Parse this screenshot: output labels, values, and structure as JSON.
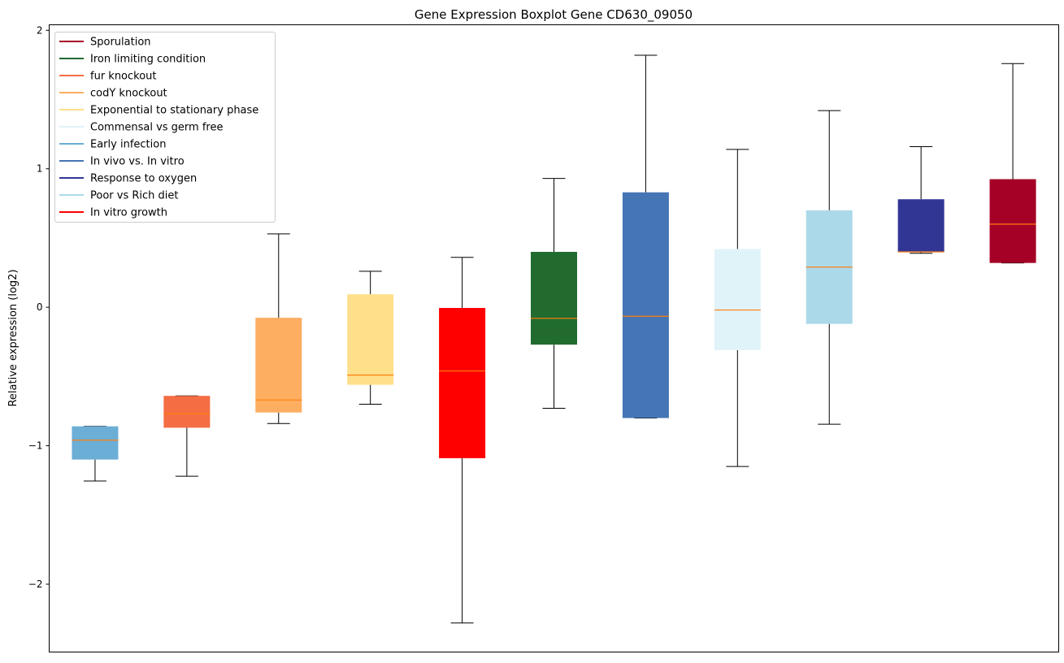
{
  "chart_data": {
    "type": "boxplot",
    "title": "Gene Expression Boxplot Gene CD630_09050",
    "xlabel": "",
    "ylabel": "Relative expression (log2)",
    "ylim": [
      -2.49,
      2.04
    ],
    "xlim": [
      0.5,
      11.5
    ],
    "yticks": [
      {
        "v": 2,
        "label": "2"
      },
      {
        "v": 1,
        "label": "1"
      },
      {
        "v": 0,
        "label": "0"
      },
      {
        "v": -1,
        "label": "−1"
      },
      {
        "v": -2,
        "label": "−2"
      }
    ],
    "median_color": "#ff7f0e",
    "boxes": [
      {
        "name": "Early infection",
        "color": "#6baed6",
        "whislo": -1.255,
        "q1": -1.1,
        "med": -0.96,
        "q3": -0.86,
        "whishi": -0.86
      },
      {
        "name": "fur knockout",
        "color": "#f46d43",
        "whislo": -1.22,
        "q1": -0.87,
        "med": -0.77,
        "q3": -0.64,
        "whishi": -0.64
      },
      {
        "name": "codY knockout",
        "color": "#fdae61",
        "whislo": -0.84,
        "q1": -0.76,
        "med": -0.67,
        "q3": -0.076,
        "whishi": 0.53
      },
      {
        "name": "Exponential to stationary phase",
        "color": "#fee08b",
        "whislo": -0.7,
        "q1": -0.56,
        "med": -0.49,
        "q3": 0.094,
        "whishi": 0.26
      },
      {
        "name": "In vitro growth",
        "color": "#ff0000",
        "whislo": -2.28,
        "q1": -1.09,
        "med": -0.46,
        "q3": -0.005,
        "whishi": 0.36
      },
      {
        "name": "Iron limiting condition",
        "color": "#226b2f",
        "whislo": -0.73,
        "q1": -0.27,
        "med": -0.08,
        "q3": 0.4,
        "whishi": 0.93
      },
      {
        "name": "In vivo vs. In vitro",
        "color": "#4575b4",
        "whislo": -0.8,
        "q1": -0.8,
        "med": -0.065,
        "q3": 0.83,
        "whishi": 1.82
      },
      {
        "name": "Commensal vs germ free",
        "color": "#e0f3f8",
        "whislo": -1.15,
        "q1": -0.31,
        "med": -0.02,
        "q3": 0.42,
        "whishi": 1.14
      },
      {
        "name": "Poor vs Rich diet",
        "color": "#abd9e9",
        "whislo": -0.845,
        "q1": -0.12,
        "med": 0.29,
        "q3": 0.7,
        "whishi": 1.42
      },
      {
        "name": "Response to oxygen",
        "color": "#313695",
        "whislo": 0.39,
        "q1": 0.4,
        "med": 0.4,
        "q3": 0.78,
        "whishi": 1.16
      },
      {
        "name": "Sporulation",
        "color": "#a50026",
        "whislo": 0.32,
        "q1": 0.32,
        "med": 0.6,
        "q3": 0.925,
        "whishi": 1.76
      }
    ],
    "legend": {
      "placement": "top-left",
      "entries": [
        {
          "label": "Sporulation",
          "color": "#a50026"
        },
        {
          "label": "Iron limiting condition",
          "color": "#226b2f"
        },
        {
          "label": "fur knockout",
          "color": "#f46d43"
        },
        {
          "label": "codY knockout",
          "color": "#fdae61"
        },
        {
          "label": "Exponential to stationary phase",
          "color": "#fee08b"
        },
        {
          "label": "Commensal vs germ free",
          "color": "#e0f3f8"
        },
        {
          "label": "Early infection",
          "color": "#6baed6"
        },
        {
          "label": "In vivo vs. In vitro",
          "color": "#4575b4"
        },
        {
          "label": "Response to oxygen",
          "color": "#313695"
        },
        {
          "label": "Poor vs Rich diet",
          "color": "#abd9e9"
        },
        {
          "label": "In vitro growth",
          "color": "#ff0000"
        }
      ]
    }
  }
}
